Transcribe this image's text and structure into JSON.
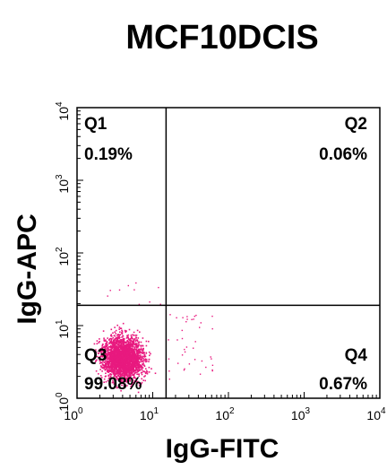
{
  "chart_data": {
    "type": "scatter",
    "title": "MCF10DCIS",
    "xlabel": "IgG-FITC",
    "ylabel": "IgG-APC",
    "x_scale": "log",
    "y_scale": "log",
    "xlim": [
      1,
      10000
    ],
    "ylim": [
      1,
      10000
    ],
    "x_ticks": [
      1,
      10,
      100,
      1000,
      10000
    ],
    "y_ticks": [
      1,
      10,
      100,
      1000,
      10000
    ],
    "x_tick_labels": [
      {
        "base": "10",
        "exp": "0"
      },
      {
        "base": "10",
        "exp": "1"
      },
      {
        "base": "10",
        "exp": "2"
      },
      {
        "base": "10",
        "exp": "3"
      },
      {
        "base": "10",
        "exp": "4"
      }
    ],
    "y_tick_labels": [
      {
        "base": "10",
        "exp": "0"
      },
      {
        "base": "10",
        "exp": "1"
      },
      {
        "base": "10",
        "exp": "2"
      },
      {
        "base": "10",
        "exp": "3"
      },
      {
        "base": "10",
        "exp": "4"
      }
    ],
    "gate": {
      "x": 15,
      "y": 19
    },
    "quadrants": [
      {
        "name": "Q1",
        "percent": "0.19%"
      },
      {
        "name": "Q2",
        "percent": "0.06%"
      },
      {
        "name": "Q3",
        "percent": "99.08%"
      },
      {
        "name": "Q4",
        "percent": "0.67%"
      }
    ],
    "population": {
      "color": "#e8197f",
      "x_center": 4,
      "y_center": 3.5
    },
    "grid": false
  }
}
